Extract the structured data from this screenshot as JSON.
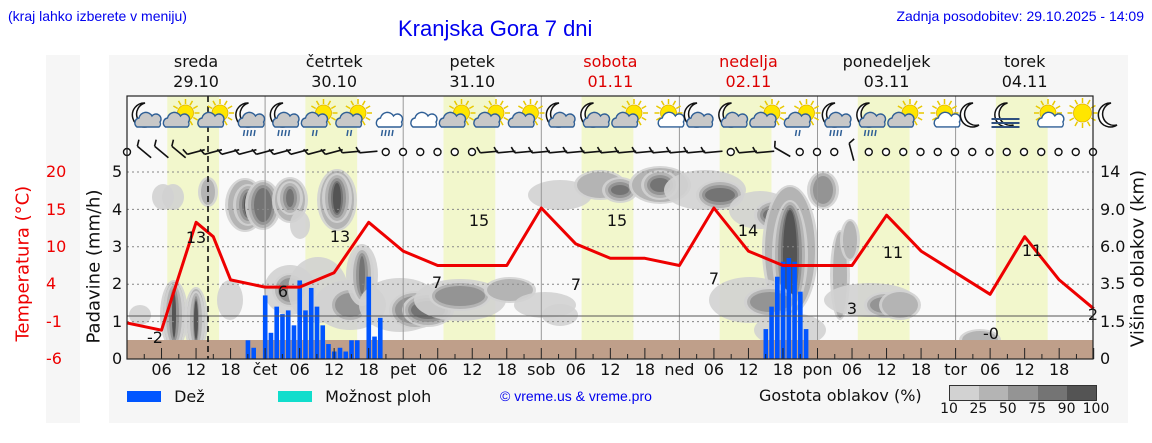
{
  "header": {
    "menu_hint": "(kraj lahko izberete v meniju)",
    "title": "Kranjska Gora 7 dni",
    "last_update": "Zadnja posodobitev: 29.10.2025 - 14:09"
  },
  "days": [
    {
      "name": "sreda",
      "date": "29.10",
      "color": "#111111"
    },
    {
      "name": "četrtek",
      "date": "30.10",
      "color": "#111111"
    },
    {
      "name": "petek",
      "date": "31.10",
      "color": "#111111"
    },
    {
      "name": "sobota",
      "date": "01.11",
      "color": "#dd0000"
    },
    {
      "name": "nedelja",
      "date": "02.11",
      "color": "#dd0000"
    },
    {
      "name": "ponedeljek",
      "date": "03.11",
      "color": "#111111"
    },
    {
      "name": "torek",
      "date": "04.11",
      "color": "#111111"
    }
  ],
  "weather_icons": [
    "moon-cloud",
    "sun-cloud",
    "sun-cloud",
    "moon-cloud-rain",
    "moon-cloud-rain",
    "sun-cloud-rain",
    "sun-cloud-rain",
    "cloud-rain",
    "cloud",
    "sun-cloud",
    "sun-cloud",
    "sun-cloud",
    "moon-cloud",
    "moon-cloud",
    "sun-cloud",
    "sun-small-cloud",
    "moon-cloud",
    "moon-cloud",
    "sun-cloud",
    "sun-cloud-rain",
    "moon-cloud-rain",
    "moon-cloud-rain",
    "sun-cloud",
    "sun-small-cloud",
    "moon",
    "moon-fog",
    "sun-small-cloud",
    "sun",
    "moon"
  ],
  "axes": {
    "left_temp_label": "Temperatura (°C)",
    "left_temp_ticks": [
      "20",
      "15",
      "10",
      "4",
      "-1",
      "-6"
    ],
    "left_precip_label": "Padavine (mm/h)",
    "left_precip_ticks": [
      "5",
      "4",
      "3",
      "2",
      "1",
      "0"
    ],
    "right_label": "Višina oblakov (km)",
    "right_ticks": [
      "14",
      "9.0",
      "6.0",
      "3.5",
      "1.5",
      "0"
    ],
    "x_ticks": [
      "06",
      "12",
      "18",
      "čet",
      "06",
      "12",
      "18",
      "pet",
      "06",
      "12",
      "18",
      "sob",
      "06",
      "12",
      "18",
      "ned",
      "06",
      "12",
      "18",
      "pon",
      "06",
      "12",
      "18",
      "tor",
      "06",
      "12",
      "18"
    ]
  },
  "legend": {
    "rain_label": "Dež",
    "rain_color": "#0055ff",
    "shower_label": "Možnost ploh",
    "shower_color": "#11ddcc",
    "copyright": "© vreme.us & vreme.pro",
    "cloud_density_label": "Gostota oblakov (%)",
    "cloud_density_ticks": [
      "10",
      "25",
      "50",
      "75",
      "90",
      "100"
    ],
    "cloud_density_colors": [
      "#d2d2d2",
      "#b4b4b4",
      "#949494",
      "#747474",
      "#545454"
    ]
  },
  "chart_data": {
    "type": "line",
    "title": "Kranjska Gora 7 dni",
    "xlabel": "",
    "ylabel": "Temperatura (°C) / Padavine (mm/h)",
    "ylim_precip": [
      0,
      5
    ],
    "ylim_temp": [
      -6,
      20
    ],
    "grid": true,
    "temperature_series": {
      "name": "Temperatura",
      "color": "#ee0000",
      "hours_from_start": [
        0,
        6,
        12,
        15,
        18,
        24,
        30,
        36,
        42,
        48,
        54,
        60,
        66,
        72,
        78,
        84,
        90,
        96,
        102,
        108,
        114,
        120,
        126,
        132,
        138,
        144,
        150,
        156,
        162,
        168
      ],
      "values": [
        -1,
        -2,
        13,
        11,
        5,
        4,
        4,
        6,
        13,
        9,
        7,
        7,
        7,
        15,
        10,
        8,
        8,
        7,
        15,
        9,
        7,
        7,
        7,
        14,
        9,
        6,
        3,
        11,
        5,
        1
      ]
    },
    "temperature_labels": [
      {
        "text": "-2",
        "day": "sreda",
        "time": "06"
      },
      {
        "text": "13",
        "day": "sreda",
        "time": "12"
      },
      {
        "text": "6",
        "day": "četrtek",
        "time": "06"
      },
      {
        "text": "13",
        "day": "četrtek",
        "time": "13"
      },
      {
        "text": "7",
        "day": "petek",
        "time": "06"
      },
      {
        "text": "15",
        "day": "petek",
        "time": "13"
      },
      {
        "text": "7",
        "day": "sobota",
        "time": "06"
      },
      {
        "text": "15",
        "day": "sobota",
        "time": "13"
      },
      {
        "text": "7",
        "day": "nedelja",
        "time": "06"
      },
      {
        "text": "14",
        "day": "nedelja",
        "time": "13"
      },
      {
        "text": "3",
        "day": "ponedeljek",
        "time": "06"
      },
      {
        "text": "11",
        "day": "ponedeljek",
        "time": "13"
      },
      {
        "text": "-0",
        "day": "torek",
        "time": "06"
      },
      {
        "text": "11",
        "day": "torek",
        "time": "13"
      },
      {
        "text": "2",
        "day": "torek",
        "time": "24"
      }
    ],
    "precipitation_series": {
      "name": "Dež",
      "unit": "mm/h",
      "hours_from_start": [
        21,
        22,
        24,
        25,
        26,
        27,
        28,
        29,
        30,
        31,
        32,
        33,
        34,
        35,
        36,
        37,
        38,
        39,
        40,
        42,
        43,
        44,
        45,
        46,
        110,
        111,
        112,
        113,
        114,
        115,
        116,
        117,
        118,
        119,
        120,
        121
      ],
      "values": [
        0.5,
        0.3,
        1.7,
        0.7,
        1.4,
        1.2,
        1.3,
        0.9,
        2.1,
        1.3,
        1.9,
        1.4,
        0.9,
        0.4,
        0.2,
        0.3,
        0.2,
        0.5,
        0.5,
        2.2,
        0.6,
        1.1,
        0.0,
        0.0,
        0.0,
        0.8,
        1.4,
        2.2,
        2.6,
        2.7,
        2.6,
        1.8,
        0.8,
        0.0,
        0.0,
        0.0
      ]
    },
    "now_marker": {
      "day": "sreda",
      "time": "14:09"
    }
  }
}
